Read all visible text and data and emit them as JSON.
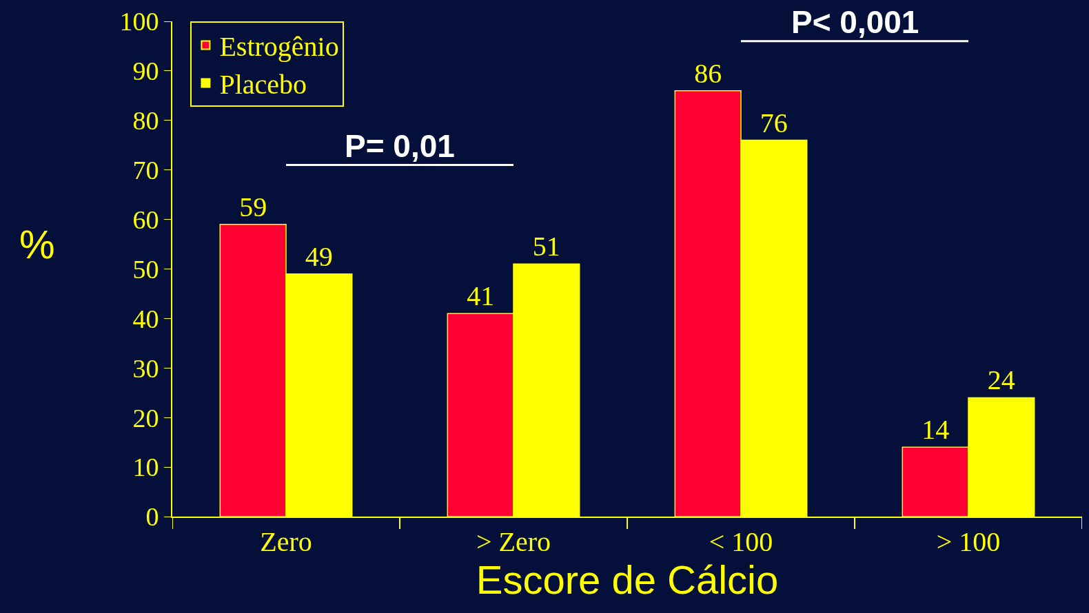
{
  "chart_data": {
    "type": "bar",
    "xlabel": "Escore de Cálcio",
    "ylabel": "%",
    "categories": [
      "Zero",
      "> Zero",
      "< 100",
      "> 100"
    ],
    "series": [
      {
        "name": "Estrogênio",
        "color": "#ff0033",
        "values": [
          59,
          41,
          86,
          14
        ]
      },
      {
        "name": "Placebo",
        "color": "#ffff00",
        "values": [
          49,
          51,
          76,
          24
        ]
      }
    ],
    "ylim": [
      0,
      100
    ],
    "yticks": [
      0,
      10,
      20,
      30,
      40,
      50,
      60,
      70,
      80,
      90,
      100
    ],
    "data_labels": true,
    "grid": false,
    "legend": "top left",
    "annotations": [
      "P= 0,01",
      "P< 0,001"
    ]
  }
}
